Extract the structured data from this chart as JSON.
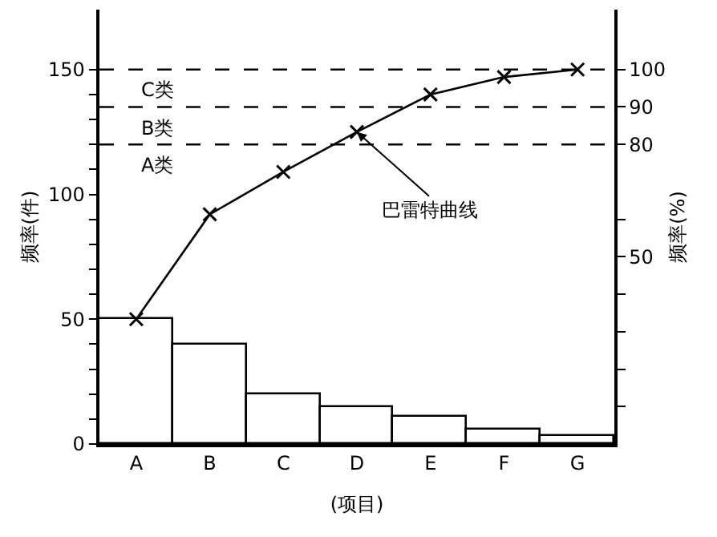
{
  "chart_data": {
    "type": "bar",
    "categories": [
      "A",
      "B",
      "C",
      "D",
      "E",
      "F",
      "G"
    ],
    "series": [
      {
        "color": "#ffffff",
        "values": [
          50,
          40,
          20,
          15,
          11,
          6,
          3
        ]
      },
      {
        "type": "line",
        "color": "#000000",
        "values": [
          50,
          92,
          109,
          125,
          140,
          147,
          150
        ],
        "marker": "cross",
        "line_style": "solid"
      }
    ],
    "xlabel": "(项目)",
    "ylabel": "频率(件)",
    "y2label": "频率(%)",
    "ylim": [
      0,
      174
    ],
    "yticks": [
      0,
      {
        "value": 10,
        "label": null
      },
      {
        "value": 20,
        "label": null
      },
      {
        "value": 30,
        "label": null
      },
      {
        "value": 40,
        "label": null
      },
      50,
      {
        "value": 60,
        "label": null
      },
      {
        "value": 70,
        "label": null
      },
      {
        "value": 80,
        "label": null
      },
      {
        "value": 90,
        "label": null
      },
      100,
      {
        "value": 110,
        "label": null
      },
      {
        "value": 120,
        "label": null
      },
      {
        "value": 130,
        "label": null
      },
      {
        "value": 140,
        "label": null
      },
      150
    ],
    "y2lim": [
      0,
      116
    ],
    "y2ticks": [
      {
        "value": 10,
        "label": null
      },
      {
        "value": 20,
        "label": null
      },
      {
        "value": 30,
        "label": null
      },
      {
        "value": 40,
        "label": null
      },
      50,
      {
        "value": 60,
        "label": null
      },
      80,
      90,
      100
    ],
    "ref_lines": [
      {
        "axis": "y2",
        "value": 100,
        "line_style": "dashed"
      },
      {
        "axis": "y2",
        "value": 90,
        "line_style": "dashed"
      },
      {
        "axis": "y2",
        "value": 80,
        "line_style": "dashed"
      }
    ],
    "annotations": [
      "C类",
      "B类",
      "A类",
      {
        "text": "巴雷特曲线",
        "x": "D",
        "y": 125
      }
    ],
    "legend": false
  }
}
